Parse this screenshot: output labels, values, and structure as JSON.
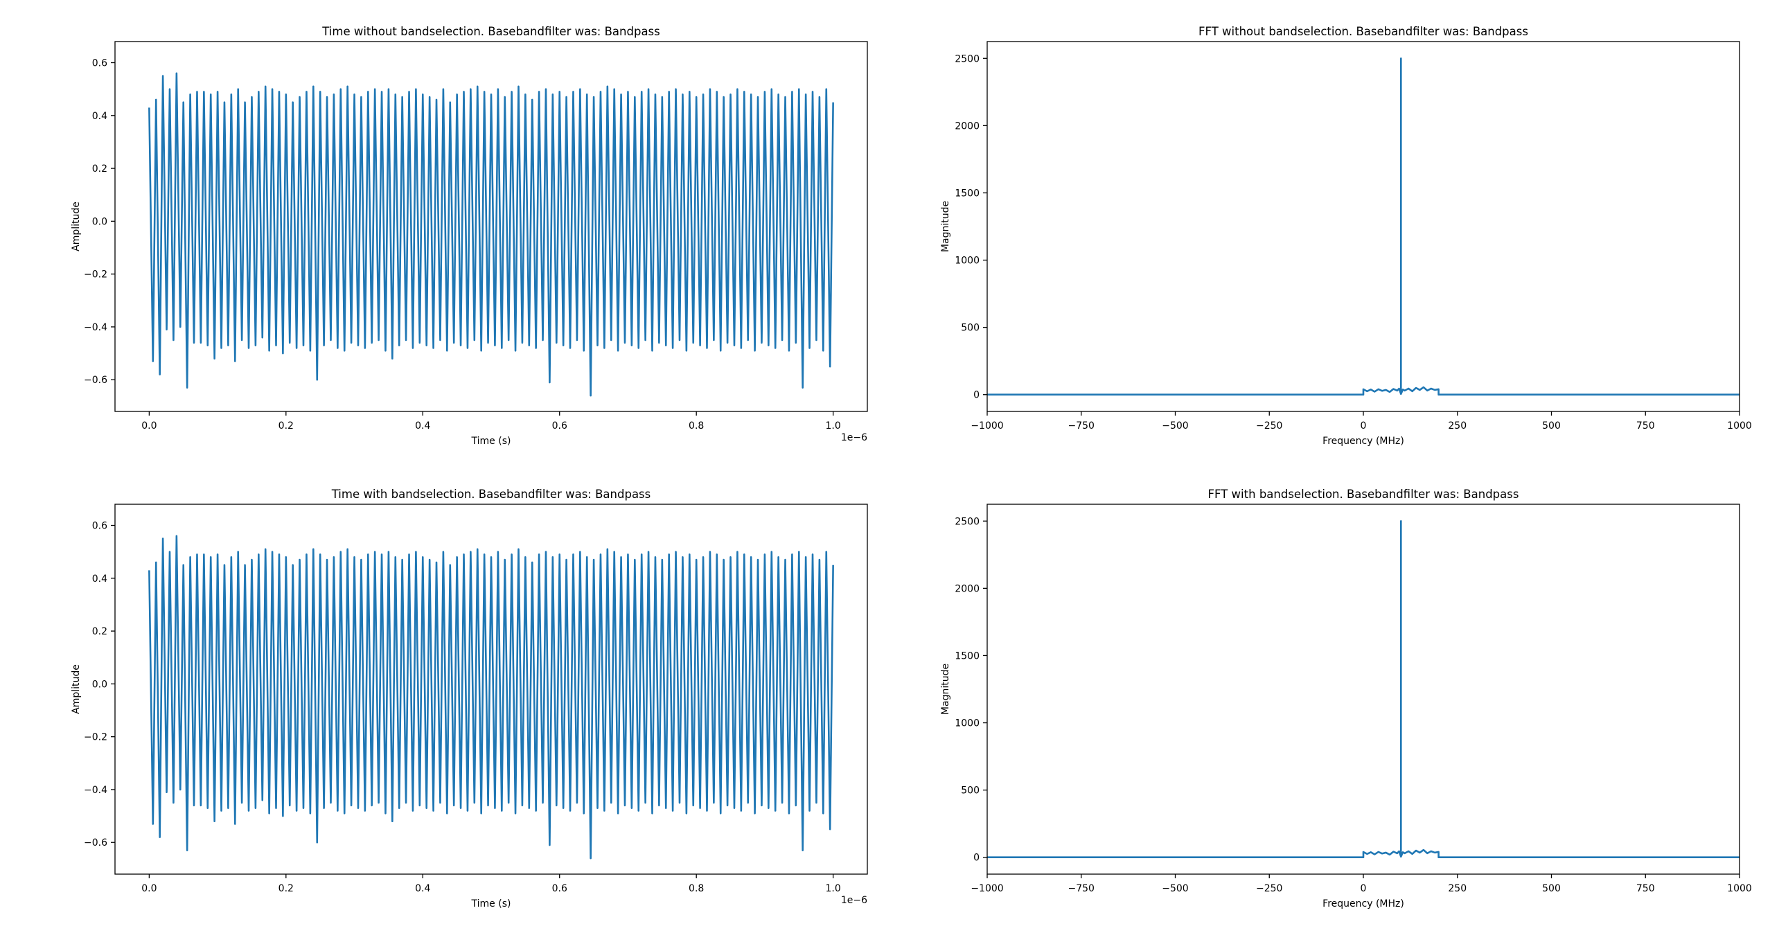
{
  "figure": {
    "colors": {
      "line": "#1f77b4",
      "axes": "#000000",
      "background": "#ffffff"
    }
  },
  "chart_data": [
    {
      "type": "line",
      "title": "Time without bandselection. Basebandfilter was: Bandpass",
      "xlabel": "Time (s)",
      "ylabel": "Amplitude",
      "xlim": [
        -0.05,
        1.05
      ],
      "ylim": [
        -0.72,
        0.68
      ],
      "x_offset_text": "1e−6",
      "xticks": [
        0.0,
        0.2,
        0.4,
        0.6,
        0.8,
        1.0
      ],
      "xtick_labels": [
        "0.0",
        "0.2",
        "0.4",
        "0.6",
        "0.8",
        "1.0"
      ],
      "yticks": [
        -0.6,
        -0.4,
        -0.2,
        0.0,
        0.2,
        0.4,
        0.6
      ],
      "ytick_labels": [
        "−0.6",
        "−0.4",
        "−0.2",
        "0.0",
        "0.2",
        "0.4",
        "0.6"
      ],
      "grid": false,
      "series": [
        {
          "x_start": 0.0,
          "x_step": 0.01,
          "peaks": [
            0.43,
            0.46,
            0.55,
            0.5,
            0.56,
            0.45,
            0.48,
            0.49,
            0.49,
            0.48,
            0.49,
            0.45,
            0.48,
            0.5,
            0.45,
            0.47,
            0.49,
            0.51,
            0.5,
            0.49,
            0.48,
            0.45,
            0.47,
            0.49,
            0.51,
            0.49,
            0.47,
            0.48,
            0.5,
            0.51,
            0.48,
            0.47,
            0.49,
            0.5,
            0.49,
            0.5,
            0.48,
            0.47,
            0.49,
            0.5,
            0.48,
            0.47,
            0.46,
            0.5,
            0.45,
            0.48,
            0.49,
            0.5,
            0.51,
            0.49,
            0.48,
            0.5,
            0.47,
            0.49,
            0.51,
            0.48,
            0.46,
            0.49,
            0.5,
            0.48,
            0.49,
            0.47,
            0.49,
            0.5,
            0.48,
            0.47,
            0.49,
            0.51,
            0.5,
            0.48,
            0.49,
            0.47,
            0.49,
            0.5,
            0.48,
            0.47,
            0.49,
            0.5,
            0.48,
            0.49,
            0.47,
            0.48,
            0.5,
            0.49,
            0.47,
            0.48,
            0.5,
            0.49,
            0.48,
            0.47,
            0.49,
            0.5,
            0.48,
            0.47,
            0.49,
            0.5,
            0.48,
            0.49,
            0.47,
            0.5,
            0.45
          ],
          "troughs": [
            -0.53,
            -0.58,
            -0.41,
            -0.45,
            -0.4,
            -0.63,
            -0.46,
            -0.46,
            -0.47,
            -0.52,
            -0.48,
            -0.47,
            -0.53,
            -0.45,
            -0.48,
            -0.47,
            -0.44,
            -0.49,
            -0.47,
            -0.5,
            -0.46,
            -0.48,
            -0.47,
            -0.49,
            -0.6,
            -0.47,
            -0.45,
            -0.48,
            -0.49,
            -0.46,
            -0.47,
            -0.48,
            -0.46,
            -0.45,
            -0.49,
            -0.52,
            -0.47,
            -0.45,
            -0.48,
            -0.46,
            -0.47,
            -0.48,
            -0.45,
            -0.49,
            -0.46,
            -0.47,
            -0.48,
            -0.45,
            -0.49,
            -0.46,
            -0.47,
            -0.48,
            -0.45,
            -0.49,
            -0.46,
            -0.47,
            -0.48,
            -0.45,
            -0.61,
            -0.46,
            -0.47,
            -0.48,
            -0.45,
            -0.49,
            -0.66,
            -0.47,
            -0.48,
            -0.45,
            -0.49,
            -0.46,
            -0.47,
            -0.48,
            -0.45,
            -0.49,
            -0.46,
            -0.47,
            -0.48,
            -0.45,
            -0.49,
            -0.46,
            -0.47,
            -0.48,
            -0.45,
            -0.49,
            -0.46,
            -0.47,
            -0.48,
            -0.45,
            -0.49,
            -0.46,
            -0.47,
            -0.48,
            -0.45,
            -0.49,
            -0.46,
            -0.63,
            -0.48,
            -0.45,
            -0.49,
            -0.55
          ]
        }
      ]
    },
    {
      "type": "line",
      "title": "FFT without bandselection. Basebandfilter was: Bandpass",
      "xlabel": "Frequency (MHz)",
      "ylabel": "Magnitude",
      "xlim": [
        -1000,
        1000
      ],
      "ylim": [
        -125,
        2625
      ],
      "xticks": [
        -1000,
        -750,
        -500,
        -250,
        0,
        250,
        500,
        750,
        1000
      ],
      "xtick_labels": [
        "−1000",
        "−750",
        "−500",
        "−250",
        "0",
        "250",
        "500",
        "750",
        "1000"
      ],
      "yticks": [
        0,
        500,
        1000,
        1500,
        2000,
        2500
      ],
      "ytick_labels": [
        "0",
        "500",
        "1000",
        "1500",
        "2000",
        "2500"
      ],
      "grid": false,
      "series": [
        {
          "x": [
            -1000,
            0,
            0,
            10,
            20,
            30,
            40,
            50,
            60,
            70,
            80,
            90,
            95,
            100,
            100,
            100,
            105,
            110,
            120,
            130,
            140,
            150,
            160,
            170,
            180,
            190,
            200,
            200,
            1000
          ],
          "y": [
            0,
            0,
            40,
            25,
            38,
            22,
            40,
            28,
            35,
            20,
            42,
            30,
            45,
            5,
            2500,
            5,
            38,
            30,
            45,
            25,
            50,
            35,
            55,
            30,
            45,
            35,
            40,
            0,
            0
          ]
        }
      ]
    },
    {
      "type": "line",
      "title": "Time with bandselection. Basebandfilter was: Bandpass",
      "xlabel": "Time (s)",
      "ylabel": "Amplitude",
      "xlim": [
        -0.05,
        1.05
      ],
      "ylim": [
        -0.72,
        0.68
      ],
      "x_offset_text": "1e−6",
      "xticks": [
        0.0,
        0.2,
        0.4,
        0.6,
        0.8,
        1.0
      ],
      "xtick_labels": [
        "0.0",
        "0.2",
        "0.4",
        "0.6",
        "0.8",
        "1.0"
      ],
      "yticks": [
        -0.6,
        -0.4,
        -0.2,
        0.0,
        0.2,
        0.4,
        0.6
      ],
      "ytick_labels": [
        "−0.6",
        "−0.4",
        "−0.2",
        "0.0",
        "0.2",
        "0.4",
        "0.6"
      ],
      "grid": false,
      "series": [
        {
          "x_start": 0.0,
          "x_step": 0.01,
          "peaks": [
            0.43,
            0.46,
            0.55,
            0.5,
            0.56,
            0.45,
            0.48,
            0.49,
            0.49,
            0.48,
            0.49,
            0.45,
            0.48,
            0.5,
            0.45,
            0.47,
            0.49,
            0.51,
            0.5,
            0.49,
            0.48,
            0.45,
            0.47,
            0.49,
            0.51,
            0.49,
            0.47,
            0.48,
            0.5,
            0.51,
            0.48,
            0.47,
            0.49,
            0.5,
            0.49,
            0.5,
            0.48,
            0.47,
            0.49,
            0.5,
            0.48,
            0.47,
            0.46,
            0.5,
            0.45,
            0.48,
            0.49,
            0.5,
            0.51,
            0.49,
            0.48,
            0.5,
            0.47,
            0.49,
            0.51,
            0.48,
            0.46,
            0.49,
            0.5,
            0.48,
            0.49,
            0.47,
            0.49,
            0.5,
            0.48,
            0.47,
            0.49,
            0.51,
            0.5,
            0.48,
            0.49,
            0.47,
            0.49,
            0.5,
            0.48,
            0.47,
            0.49,
            0.5,
            0.48,
            0.49,
            0.47,
            0.48,
            0.5,
            0.49,
            0.47,
            0.48,
            0.5,
            0.49,
            0.48,
            0.47,
            0.49,
            0.5,
            0.48,
            0.47,
            0.49,
            0.5,
            0.48,
            0.49,
            0.47,
            0.5,
            0.45
          ],
          "troughs": [
            -0.53,
            -0.58,
            -0.41,
            -0.45,
            -0.4,
            -0.63,
            -0.46,
            -0.46,
            -0.47,
            -0.52,
            -0.48,
            -0.47,
            -0.53,
            -0.45,
            -0.48,
            -0.47,
            -0.44,
            -0.49,
            -0.47,
            -0.5,
            -0.46,
            -0.48,
            -0.47,
            -0.49,
            -0.6,
            -0.47,
            -0.45,
            -0.48,
            -0.49,
            -0.46,
            -0.47,
            -0.48,
            -0.46,
            -0.45,
            -0.49,
            -0.52,
            -0.47,
            -0.45,
            -0.48,
            -0.46,
            -0.47,
            -0.48,
            -0.45,
            -0.49,
            -0.46,
            -0.47,
            -0.48,
            -0.45,
            -0.49,
            -0.46,
            -0.47,
            -0.48,
            -0.45,
            -0.49,
            -0.46,
            -0.47,
            -0.48,
            -0.45,
            -0.61,
            -0.46,
            -0.47,
            -0.48,
            -0.45,
            -0.49,
            -0.66,
            -0.47,
            -0.48,
            -0.45,
            -0.49,
            -0.46,
            -0.47,
            -0.48,
            -0.45,
            -0.49,
            -0.46,
            -0.47,
            -0.48,
            -0.45,
            -0.49,
            -0.46,
            -0.47,
            -0.48,
            -0.45,
            -0.49,
            -0.46,
            -0.47,
            -0.48,
            -0.45,
            -0.49,
            -0.46,
            -0.47,
            -0.48,
            -0.45,
            -0.49,
            -0.46,
            -0.63,
            -0.48,
            -0.45,
            -0.49,
            -0.55
          ]
        }
      ]
    },
    {
      "type": "line",
      "title": "FFT with bandselection. Basebandfilter was: Bandpass",
      "xlabel": "Frequency (MHz)",
      "ylabel": "Magnitude",
      "xlim": [
        -1000,
        1000
      ],
      "ylim": [
        -125,
        2625
      ],
      "xticks": [
        -1000,
        -750,
        -500,
        -250,
        0,
        250,
        500,
        750,
        1000
      ],
      "xtick_labels": [
        "−1000",
        "−750",
        "−500",
        "−250",
        "0",
        "250",
        "500",
        "750",
        "1000"
      ],
      "yticks": [
        0,
        500,
        1000,
        1500,
        2000,
        2500
      ],
      "ytick_labels": [
        "0",
        "500",
        "1000",
        "1500",
        "2000",
        "2500"
      ],
      "grid": false,
      "series": [
        {
          "x": [
            -1000,
            0,
            0,
            10,
            20,
            30,
            40,
            50,
            60,
            70,
            80,
            90,
            95,
            100,
            100,
            100,
            105,
            110,
            120,
            130,
            140,
            150,
            160,
            170,
            180,
            190,
            200,
            200,
            1000
          ],
          "y": [
            0,
            0,
            40,
            25,
            38,
            22,
            40,
            28,
            35,
            20,
            42,
            30,
            45,
            5,
            2500,
            5,
            38,
            30,
            45,
            25,
            50,
            35,
            55,
            30,
            45,
            35,
            40,
            0,
            0
          ]
        }
      ]
    }
  ]
}
